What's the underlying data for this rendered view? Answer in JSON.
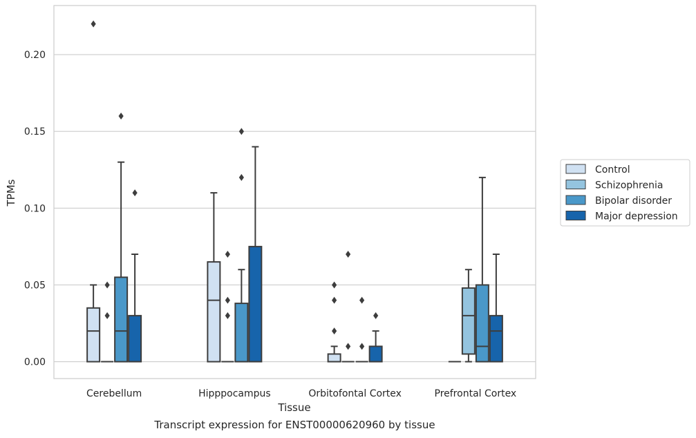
{
  "caption": "Transcript expression for ENST00000620960 by tissue",
  "chart_data": {
    "type": "box",
    "xlabel": "Tissue",
    "ylabel": "TPMs",
    "ylim": [
      -0.011,
      0.232
    ],
    "yticks": [
      0.0,
      0.05,
      0.1,
      0.15,
      0.2
    ],
    "ytick_labels": [
      "0.00",
      "0.05",
      "0.10",
      "0.15",
      "0.20"
    ],
    "grid": "horizontal",
    "legend_placement": "right",
    "categories": [
      "Cerebellum",
      "Hipppocampus",
      "Orbitofontal Cortex",
      "Prefrontal Cortex"
    ],
    "series": [
      {
        "name": "Control",
        "color": "#d0e1f2",
        "boxes": [
          {
            "q1": 0.0,
            "median": 0.02,
            "q3": 0.035,
            "whislo": 0.0,
            "whishi": 0.05,
            "fliers": [
              0.22
            ]
          },
          {
            "q1": 0.0,
            "median": 0.04,
            "q3": 0.065,
            "whislo": 0.0,
            "whishi": 0.11,
            "fliers": []
          },
          {
            "q1": 0.0,
            "median": 0.0,
            "q3": 0.005,
            "whislo": 0.0,
            "whishi": 0.01,
            "fliers": [
              0.02,
              0.04,
              0.05
            ]
          },
          {
            "q1": 0.0,
            "median": 0.0,
            "q3": 0.0,
            "whislo": 0.0,
            "whishi": 0.0,
            "fliers": []
          }
        ]
      },
      {
        "name": "Schizophrenia",
        "color": "#94c4df",
        "boxes": [
          {
            "q1": 0.0,
            "median": 0.0,
            "q3": 0.0,
            "whislo": 0.0,
            "whishi": 0.0,
            "fliers": [
              0.03,
              0.05
            ]
          },
          {
            "q1": 0.0,
            "median": 0.0,
            "q3": 0.0,
            "whislo": 0.0,
            "whishi": 0.0,
            "fliers": [
              0.03,
              0.04,
              0.07
            ]
          },
          {
            "q1": 0.0,
            "median": 0.0,
            "q3": 0.0,
            "whislo": 0.0,
            "whishi": 0.0,
            "fliers": [
              0.01,
              0.07
            ]
          },
          {
            "q1": 0.005,
            "median": 0.03,
            "q3": 0.048,
            "whislo": 0.0,
            "whishi": 0.06,
            "fliers": []
          }
        ]
      },
      {
        "name": "Bipolar disorder",
        "color": "#4a98c9",
        "boxes": [
          {
            "q1": 0.0,
            "median": 0.02,
            "q3": 0.055,
            "whislo": 0.0,
            "whishi": 0.13,
            "fliers": [
              0.16
            ]
          },
          {
            "q1": 0.0,
            "median": 0.0,
            "q3": 0.038,
            "whislo": 0.0,
            "whishi": 0.06,
            "fliers": [
              0.12,
              0.15
            ]
          },
          {
            "q1": 0.0,
            "median": 0.0,
            "q3": 0.0,
            "whislo": 0.0,
            "whishi": 0.0,
            "fliers": [
              0.01,
              0.04
            ]
          },
          {
            "q1": 0.0,
            "median": 0.01,
            "q3": 0.05,
            "whislo": 0.0,
            "whishi": 0.12,
            "fliers": []
          }
        ]
      },
      {
        "name": "Major depression",
        "color": "#1764ab",
        "boxes": [
          {
            "q1": 0.0,
            "median": 0.0,
            "q3": 0.03,
            "whislo": 0.0,
            "whishi": 0.07,
            "fliers": [
              0.11
            ]
          },
          {
            "q1": 0.0,
            "median": 0.0,
            "q3": 0.075,
            "whislo": 0.0,
            "whishi": 0.14,
            "fliers": []
          },
          {
            "q1": 0.0,
            "median": 0.0,
            "q3": 0.01,
            "whislo": 0.0,
            "whishi": 0.02,
            "fliers": [
              0.03
            ]
          },
          {
            "q1": 0.0,
            "median": 0.02,
            "q3": 0.03,
            "whislo": 0.0,
            "whishi": 0.07,
            "fliers": []
          }
        ]
      }
    ]
  }
}
